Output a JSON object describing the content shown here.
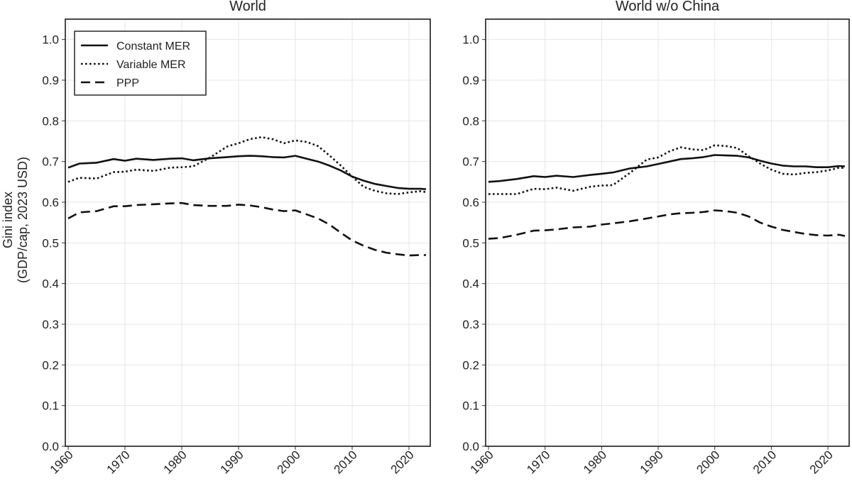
{
  "chart_data": [
    {
      "type": "line",
      "title": "World",
      "ylabel_line1": "Gini index",
      "ylabel_line2": "(GDP/cap, 2023 USD)",
      "xlabel": "",
      "xlim": [
        1960,
        2023
      ],
      "ylim": [
        0.0,
        1.05
      ],
      "xticks": [
        "1960",
        "1970",
        "1980",
        "1990",
        "2000",
        "2010",
        "2020"
      ],
      "yticks": [
        "0.0",
        "0.1",
        "0.2",
        "0.3",
        "0.4",
        "0.5",
        "0.6",
        "0.7",
        "0.8",
        "0.9",
        "1.0"
      ],
      "grid": true,
      "legend_position": "top-left",
      "x": [
        1960,
        1962,
        1965,
        1968,
        1970,
        1972,
        1975,
        1978,
        1980,
        1982,
        1985,
        1988,
        1990,
        1992,
        1994,
        1996,
        1998,
        2000,
        2002,
        2004,
        2006,
        2008,
        2010,
        2012,
        2014,
        2016,
        2018,
        2020,
        2022,
        2023
      ],
      "series": [
        {
          "name": "Constant MER",
          "style": "solid",
          "values": [
            0.685,
            0.695,
            0.697,
            0.706,
            0.702,
            0.707,
            0.704,
            0.707,
            0.708,
            0.703,
            0.708,
            0.711,
            0.713,
            0.714,
            0.713,
            0.711,
            0.71,
            0.714,
            0.707,
            0.7,
            0.69,
            0.678,
            0.663,
            0.653,
            0.645,
            0.64,
            0.635,
            0.633,
            0.633,
            0.632
          ]
        },
        {
          "name": "Variable MER",
          "style": "dotted",
          "values": [
            0.65,
            0.66,
            0.658,
            0.674,
            0.675,
            0.68,
            0.677,
            0.685,
            0.686,
            0.688,
            0.71,
            0.737,
            0.745,
            0.755,
            0.76,
            0.755,
            0.745,
            0.752,
            0.748,
            0.738,
            0.715,
            0.69,
            0.663,
            0.638,
            0.628,
            0.622,
            0.62,
            0.624,
            0.627,
            0.625
          ]
        },
        {
          "name": "PPP",
          "style": "dashed",
          "values": [
            0.56,
            0.575,
            0.578,
            0.59,
            0.59,
            0.593,
            0.595,
            0.597,
            0.598,
            0.593,
            0.591,
            0.591,
            0.594,
            0.592,
            0.588,
            0.582,
            0.578,
            0.58,
            0.57,
            0.56,
            0.545,
            0.525,
            0.506,
            0.493,
            0.483,
            0.476,
            0.472,
            0.469,
            0.47,
            0.47
          ]
        }
      ]
    },
    {
      "type": "line",
      "title": "World w/o China",
      "xlabel": "",
      "xlim": [
        1960,
        2023
      ],
      "ylim": [
        0.0,
        1.05
      ],
      "xticks": [
        "1960",
        "1970",
        "1980",
        "1990",
        "2000",
        "2010",
        "2020"
      ],
      "yticks": [
        "0.0",
        "0.1",
        "0.2",
        "0.3",
        "0.4",
        "0.5",
        "0.6",
        "0.7",
        "0.8",
        "0.9",
        "1.0"
      ],
      "grid": true,
      "x": [
        1960,
        1962,
        1965,
        1968,
        1970,
        1972,
        1975,
        1978,
        1980,
        1982,
        1985,
        1988,
        1990,
        1992,
        1994,
        1996,
        1998,
        2000,
        2002,
        2004,
        2006,
        2008,
        2010,
        2012,
        2014,
        2016,
        2018,
        2020,
        2022,
        2023
      ],
      "series": [
        {
          "name": "Constant MER",
          "style": "solid",
          "values": [
            0.65,
            0.652,
            0.657,
            0.664,
            0.662,
            0.665,
            0.662,
            0.667,
            0.67,
            0.673,
            0.683,
            0.688,
            0.694,
            0.7,
            0.706,
            0.708,
            0.711,
            0.716,
            0.715,
            0.714,
            0.71,
            0.702,
            0.695,
            0.69,
            0.688,
            0.688,
            0.686,
            0.686,
            0.689,
            0.688
          ]
        },
        {
          "name": "Variable MER",
          "style": "dotted",
          "values": [
            0.62,
            0.62,
            0.62,
            0.633,
            0.632,
            0.636,
            0.628,
            0.638,
            0.641,
            0.642,
            0.672,
            0.705,
            0.71,
            0.725,
            0.735,
            0.73,
            0.728,
            0.74,
            0.738,
            0.733,
            0.713,
            0.695,
            0.68,
            0.67,
            0.668,
            0.672,
            0.674,
            0.678,
            0.685,
            0.684
          ]
        },
        {
          "name": "PPP",
          "style": "dashed",
          "values": [
            0.51,
            0.512,
            0.52,
            0.53,
            0.531,
            0.533,
            0.538,
            0.54,
            0.545,
            0.548,
            0.553,
            0.56,
            0.565,
            0.57,
            0.573,
            0.574,
            0.576,
            0.58,
            0.578,
            0.574,
            0.565,
            0.55,
            0.54,
            0.532,
            0.527,
            0.522,
            0.519,
            0.518,
            0.52,
            0.517
          ]
        }
      ]
    }
  ]
}
